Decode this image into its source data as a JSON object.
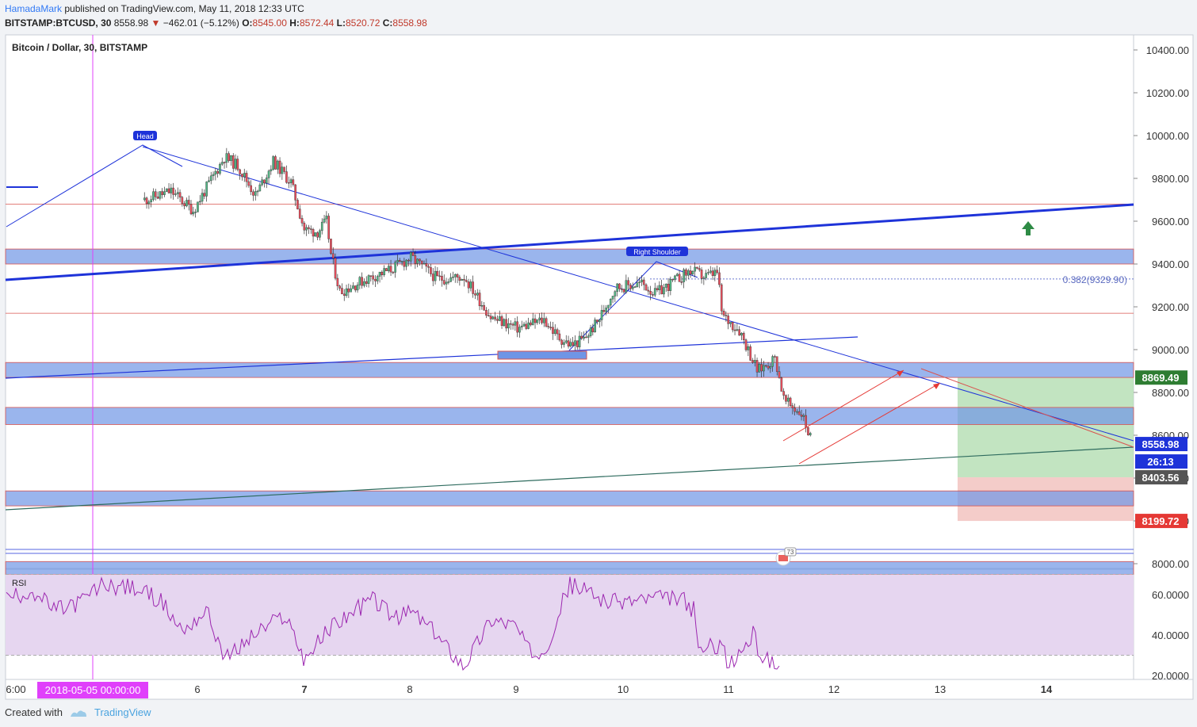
{
  "header": {
    "author": "HamadaMark",
    "published": "published on TradingView.com, May 11, 2018 12:33 UTC",
    "symbol": "BITSTAMP:BTCUSD, 30",
    "last": "8558.98",
    "change": "−462.01 (−5.12%)",
    "o_label": "O:",
    "o": "8545.00",
    "h_label": "H:",
    "h": "8572.44",
    "l_label": "L:",
    "l": "8520.72",
    "c_label": "C:",
    "c": "8558.98"
  },
  "footer": {
    "created": "Created with",
    "brand": "TradingView"
  },
  "colors": {
    "up": "#53b987",
    "down": "#eb4d5c",
    "zone": "#6f95e6",
    "trend": "#1e33d9",
    "rsi_line": "#9c27b0",
    "rsi_band": "#e6d6f0",
    "tp": "#b7dfb6",
    "sl": "#f2c3c0"
  },
  "chart_data": [
    {
      "type": "candlestick",
      "title": "Bitcoin / Dollar, 30, BITSTAMP",
      "y_ticks": [
        10400,
        10200,
        10000,
        9800,
        9600,
        9400,
        9200,
        9000,
        8800,
        8600,
        8400,
        8200,
        8000
      ],
      "y_tick_labels": [
        "10400.00",
        "10200.00",
        "10000.00",
        "9800.00",
        "9600.00",
        "9400.00",
        "9200.00",
        "9000.00",
        "8800.00",
        "8600.00",
        "8400.00",
        "8200.00",
        "8000.00"
      ],
      "x_ticks": [
        "6:00",
        "6",
        "7",
        "8",
        "9",
        "10",
        "11",
        "12",
        "13",
        "14"
      ],
      "x_tick_bold": [
        "7",
        "14"
      ],
      "cursor_label": "2018-05-05 00:00:00",
      "swing_path": [
        [
          "2018-05-05 12:00",
          9700
        ],
        [
          "2018-05-05 18:00",
          9740
        ],
        [
          "2018-05-05 23:00",
          9650
        ],
        [
          "2018-05-06 06:00",
          9900
        ],
        [
          "2018-05-06 09:00",
          9860
        ],
        [
          "2018-05-06 13:00",
          9720
        ],
        [
          "2018-05-06 17:00",
          9880
        ],
        [
          "2018-05-06 21:00",
          9780
        ],
        [
          "2018-05-07 00:00",
          9560
        ],
        [
          "2018-05-07 03:00",
          9550
        ],
        [
          "2018-05-07 05:00",
          9600
        ],
        [
          "2018-05-07 06:00",
          9440
        ],
        [
          "2018-05-07 08:00",
          9270
        ],
        [
          "2018-05-07 14:00",
          9330
        ],
        [
          "2018-05-07 19:00",
          9370
        ],
        [
          "2018-05-08 00:00",
          9430
        ],
        [
          "2018-05-08 06:00",
          9330
        ],
        [
          "2018-05-08 12:00",
          9340
        ],
        [
          "2018-05-08 18:00",
          9150
        ],
        [
          "2018-05-09 00:00",
          9100
        ],
        [
          "2018-05-09 06:00",
          9140
        ],
        [
          "2018-05-09 09:00",
          9060
        ],
        [
          "2018-05-09 12:00",
          9020
        ],
        [
          "2018-05-09 15:00",
          9050
        ],
        [
          "2018-05-09 18:00",
          9130
        ],
        [
          "2018-05-09 22:00",
          9290
        ],
        [
          "2018-05-10 04:00",
          9310
        ],
        [
          "2018-05-10 07:00",
          9260
        ],
        [
          "2018-05-10 12:00",
          9330
        ],
        [
          "2018-05-10 15:00",
          9370
        ],
        [
          "2018-05-10 18:00",
          9340
        ],
        [
          "2018-05-10 21:00",
          9360
        ],
        [
          "2018-05-10 22:00",
          9160
        ],
        [
          "2018-05-11 02:00",
          9090
        ],
        [
          "2018-05-11 06:00",
          8900
        ],
        [
          "2018-05-11 10:00",
          8960
        ],
        [
          "2018-05-11 12:00",
          8760
        ],
        [
          "2018-05-11 16:00",
          8700
        ],
        [
          "2018-05-11 18:00",
          8580
        ]
      ],
      "zones": [
        [
          9400,
          9470
        ],
        [
          8870,
          8940
        ],
        [
          8650,
          8730
        ],
        [
          8270,
          8340
        ],
        [
          7950,
          8010
        ]
      ],
      "red_levels": [
        9680,
        9170
      ],
      "fib_label": "0.382(9329.90)",
      "pattern_labels": [
        "Head",
        "Right Shoulder"
      ],
      "position": {
        "entry": 8403.56,
        "target": 8869.49,
        "stop": 8199.72
      },
      "price_labels": {
        "last": "8558.98",
        "countdown": "26:13",
        "entry": "8403.56",
        "target": "8869.49",
        "stop": "8199.72"
      },
      "event_badge": "73"
    },
    {
      "type": "line",
      "title": "RSI",
      "ylim": [
        20,
        70
      ],
      "y_ticks": [
        60,
        40,
        20
      ],
      "y_tick_labels": [
        "60.0000",
        "40.0000",
        "20.0000"
      ],
      "band": [
        30,
        70
      ]
    }
  ]
}
